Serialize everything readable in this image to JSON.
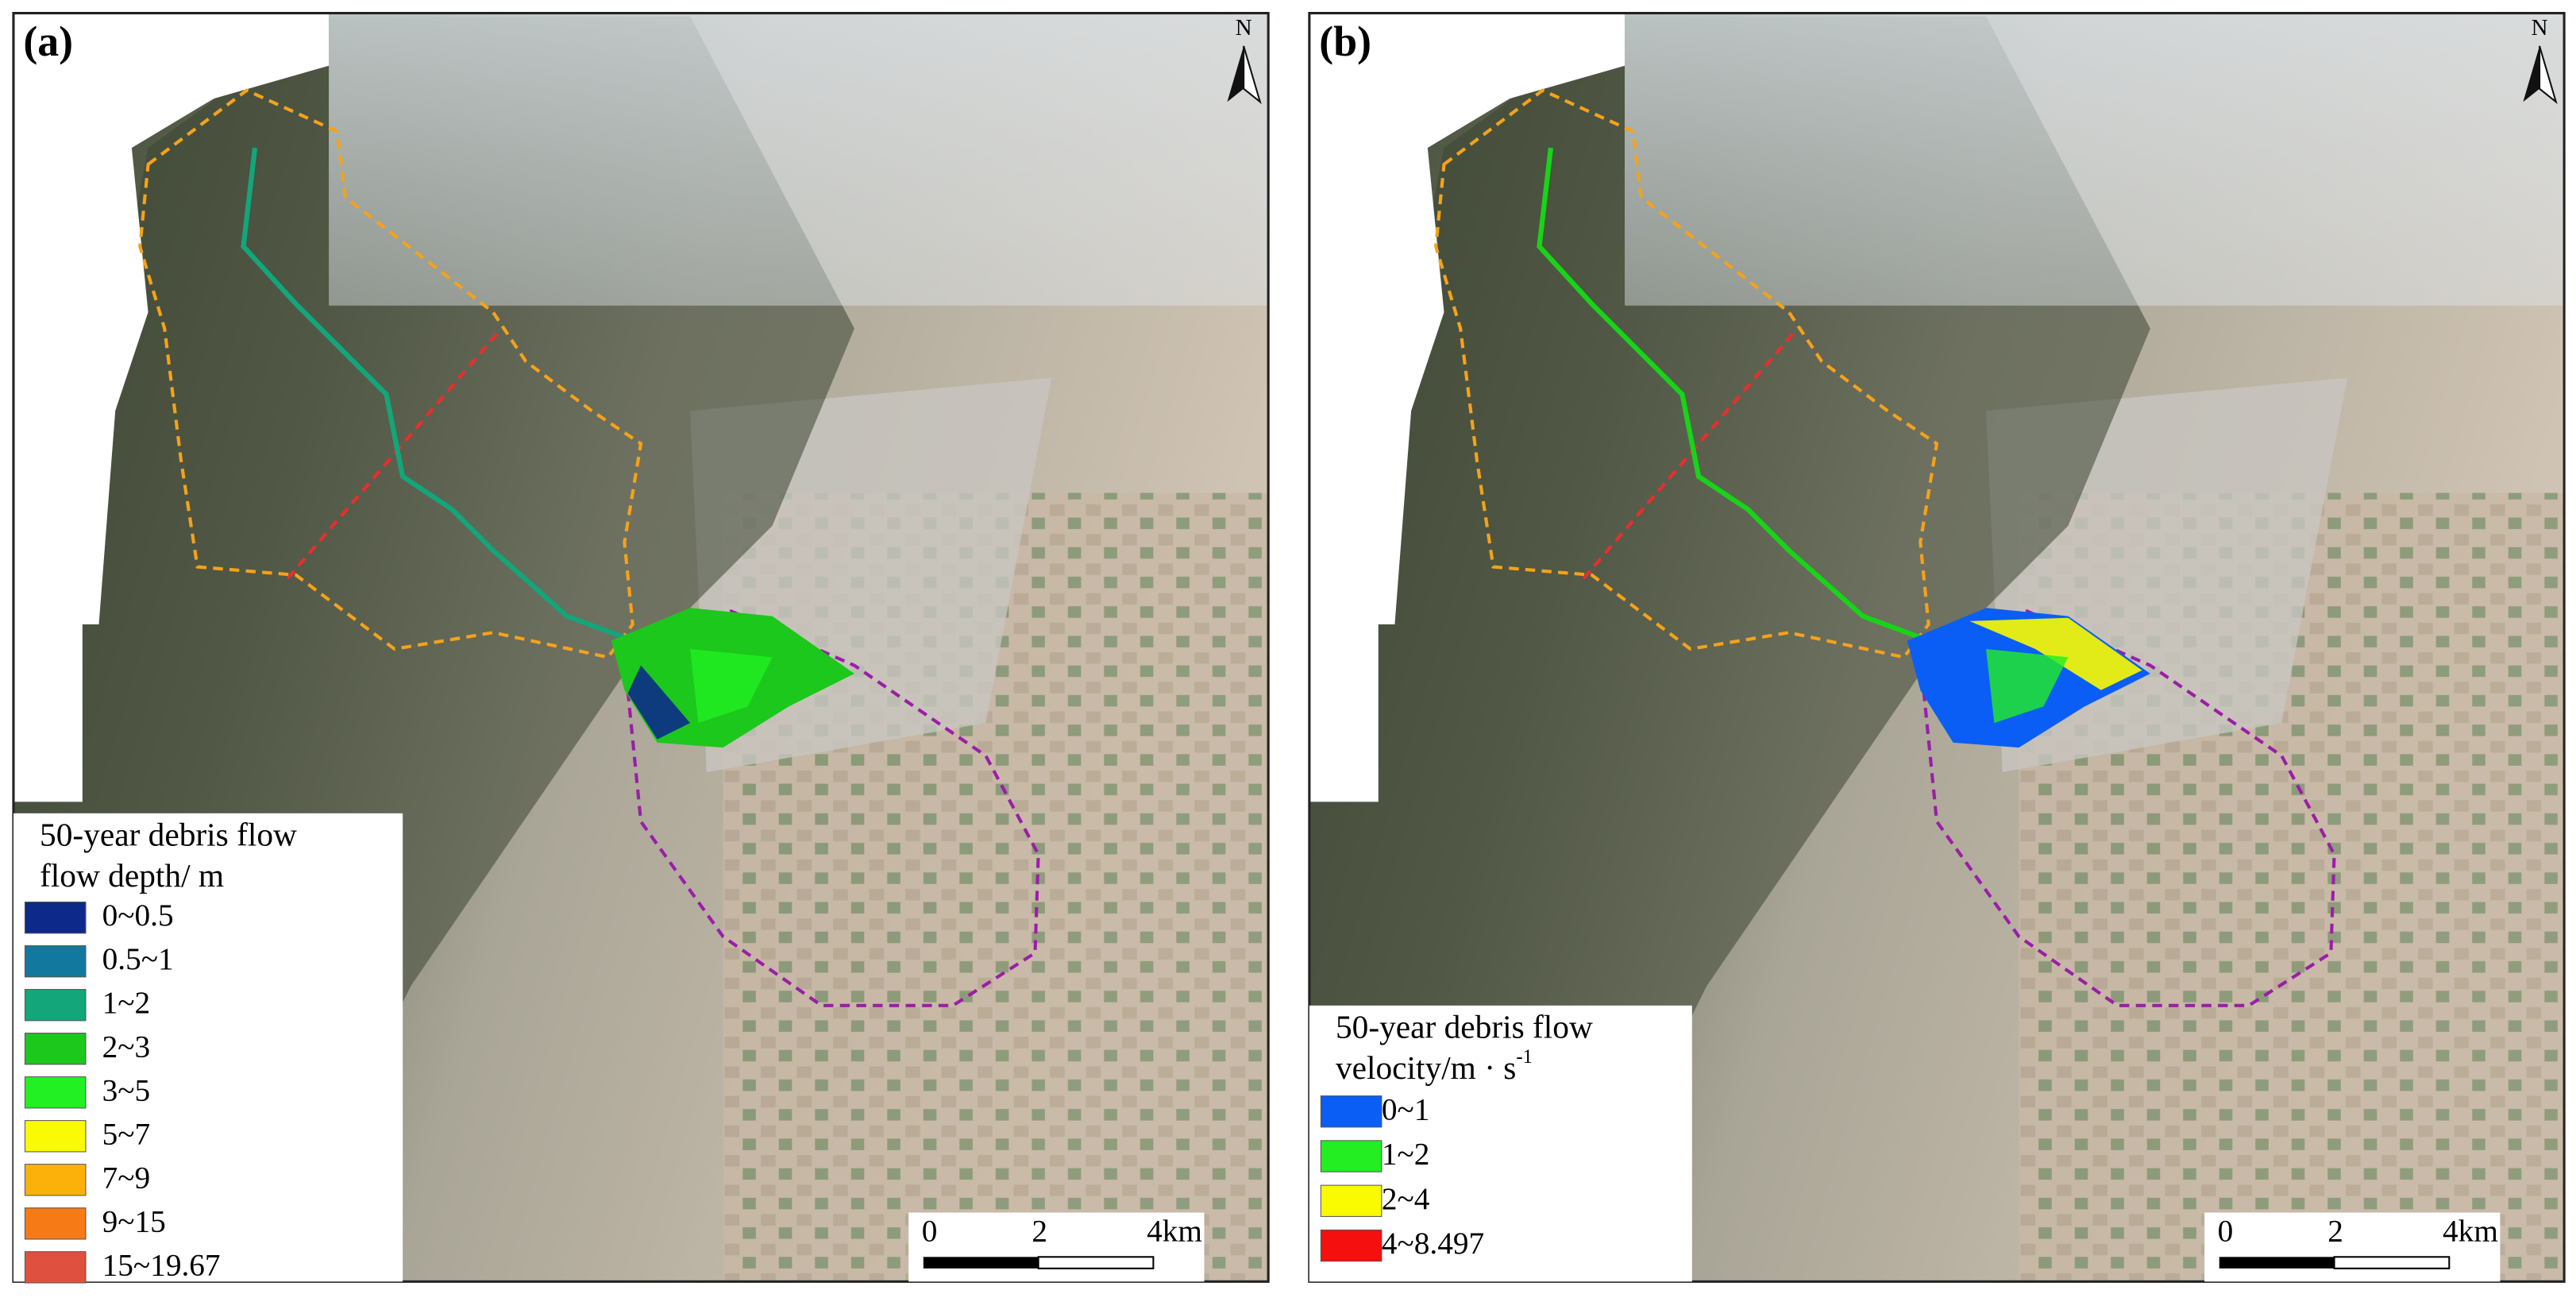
{
  "panels": [
    {
      "label": "(a)",
      "north": "N",
      "legend": {
        "title_lines": [
          "50-year debris flow",
          "flow depth/ m"
        ],
        "items": [
          {
            "label": "0~0.5",
            "color": "#0d2a8a"
          },
          {
            "label": "0.5~1",
            "color": "#13789e"
          },
          {
            "label": "1~2",
            "color": "#12a67a"
          },
          {
            "label": "2~3",
            "color": "#1cc81c"
          },
          {
            "label": "3~5",
            "color": "#22f022"
          },
          {
            "label": "5~7",
            "color": "#fafa05"
          },
          {
            "label": "7~9",
            "color": "#fbb10a"
          },
          {
            "label": "9~15",
            "color": "#f67b16"
          },
          {
            "label": "15~19.67",
            "color": "#e0503e"
          }
        ]
      },
      "scalebar": [
        "0",
        "2",
        "4km"
      ]
    },
    {
      "label": "(b)",
      "north": "N",
      "legend": {
        "title_lines": [
          "50-year debris flow",
          "velocity/m · s"
        ],
        "superscript": "-1",
        "items": [
          {
            "label": "0~1",
            "color": "#0a5ef5"
          },
          {
            "label": "1~2",
            "color": "#22ee22"
          },
          {
            "label": "2~4",
            "color": "#fafa00"
          },
          {
            "label": "4~8.497",
            "color": "#f50f0f"
          }
        ]
      },
      "scalebar": [
        "0",
        "2",
        "4km"
      ]
    }
  ]
}
